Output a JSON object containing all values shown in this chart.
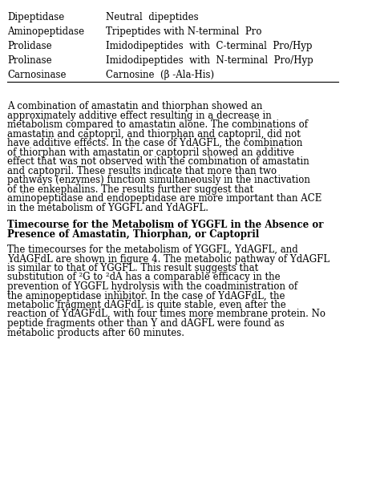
{
  "table_rows": [
    [
      "Dipeptidase",
      "Neutral  dipeptides"
    ],
    [
      "Aminopeptidase",
      "Tripeptides with N-terminal  Pro"
    ],
    [
      "Prolidase",
      "Imidodipeptides  with  C-terminal  Pro/Hyp"
    ],
    [
      "Prolinase",
      "Imidodipeptides  with  N-terminal  Pro/Hyp"
    ],
    [
      "Carnosinase",
      "Carnosine  (β -Ala-His)"
    ]
  ],
  "paragraph1": "A combination of amastatin and thiorphan showed an approximately additive effect resulting in a decrease in metabolism compared to amastatin alone. The combinations of amastatin and captopril, and thiorphan and captopril, did not have additive effects. In the case of YdAGFL, the combination of thiorphan with amastatin or captopril showed an additive effect that was not observed with the combination of amastatin and captopril. These results indicate that more than two pathways (enzymes) function simultaneously in the inactivation of the enkephalins. The results further suggest that aminopeptidase and endopeptidase are more important than ACE in the metabolism of YGGFL and YdAGFL.",
  "section_title": "Timecourse for the Metabolism of YGGFL in the Absence or Presence of Amastatin, Thiorphan, or Captopril",
  "paragraph2_parts": [
    {
      "text": "The timecourses for the metabolism of YGGFL, YdAGFL, and YdAGFdL are shown in figure 4. The metabolic pathway of YdAGFL is similar to that of YGGFL. This result suggests that substitution of ",
      "super": null
    },
    {
      "text": "2",
      "super": true
    },
    {
      "text": "G to ",
      "super": null
    },
    {
      "text": "2",
      "super": true
    },
    {
      "text": "dA has a comparable efficacy in the prevention of YGGFL hydrolysis with the coadministration of the aminopeptidase inhibitor. In the case of YdAGFdL, the metabolic fragment dAGFdL is quite stable, even after the reaction of YdAGFdL, with four times more membrane protein. No peptide fragments other than Y and dAGFL were found as metabolic products after 60 minutes.",
      "super": null
    }
  ],
  "bg_color": "#ffffff",
  "text_color": "#000000",
  "font_size": 8.5,
  "title_font_size": 8.5,
  "line_color": "#000000"
}
